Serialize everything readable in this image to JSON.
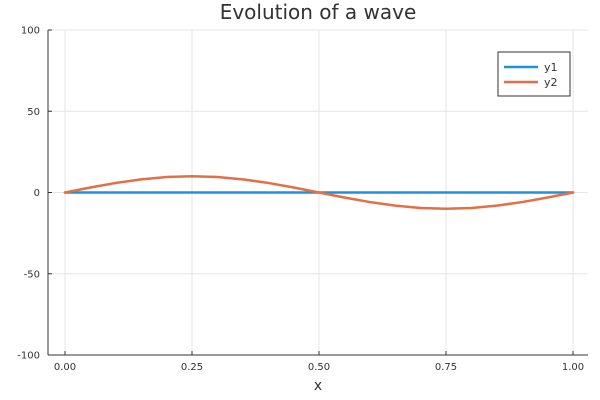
{
  "chart_data": {
    "type": "line",
    "title": "Evolution of a wave",
    "xlabel": "x",
    "ylabel": "",
    "xlim": [
      0,
      1
    ],
    "ylim": [
      -100,
      100
    ],
    "xticks": [
      "0.00",
      "0.25",
      "0.50",
      "0.75",
      "1.00"
    ],
    "yticks": [
      "100",
      "50",
      "0",
      "-50",
      "-100"
    ],
    "grid": true,
    "legend_position": "top-right",
    "series": [
      {
        "name": "y1",
        "color": "#1f8fe0",
        "x": [
          0,
          1
        ],
        "y": [
          0,
          0
        ]
      },
      {
        "name": "y2",
        "color": "#e26f46",
        "x": [
          0.0,
          0.05,
          0.1,
          0.15,
          0.2,
          0.25,
          0.3,
          0.35,
          0.4,
          0.45,
          0.5,
          0.55,
          0.6,
          0.65,
          0.7,
          0.75,
          0.8,
          0.85,
          0.9,
          0.95,
          1.0
        ],
        "y": [
          0.0,
          3.09,
          5.88,
          8.09,
          9.51,
          10.0,
          9.51,
          8.09,
          5.88,
          3.09,
          0.0,
          -3.09,
          -5.88,
          -8.09,
          -9.51,
          -10.0,
          -9.51,
          -8.09,
          -5.88,
          -3.09,
          0.0
        ]
      }
    ]
  }
}
